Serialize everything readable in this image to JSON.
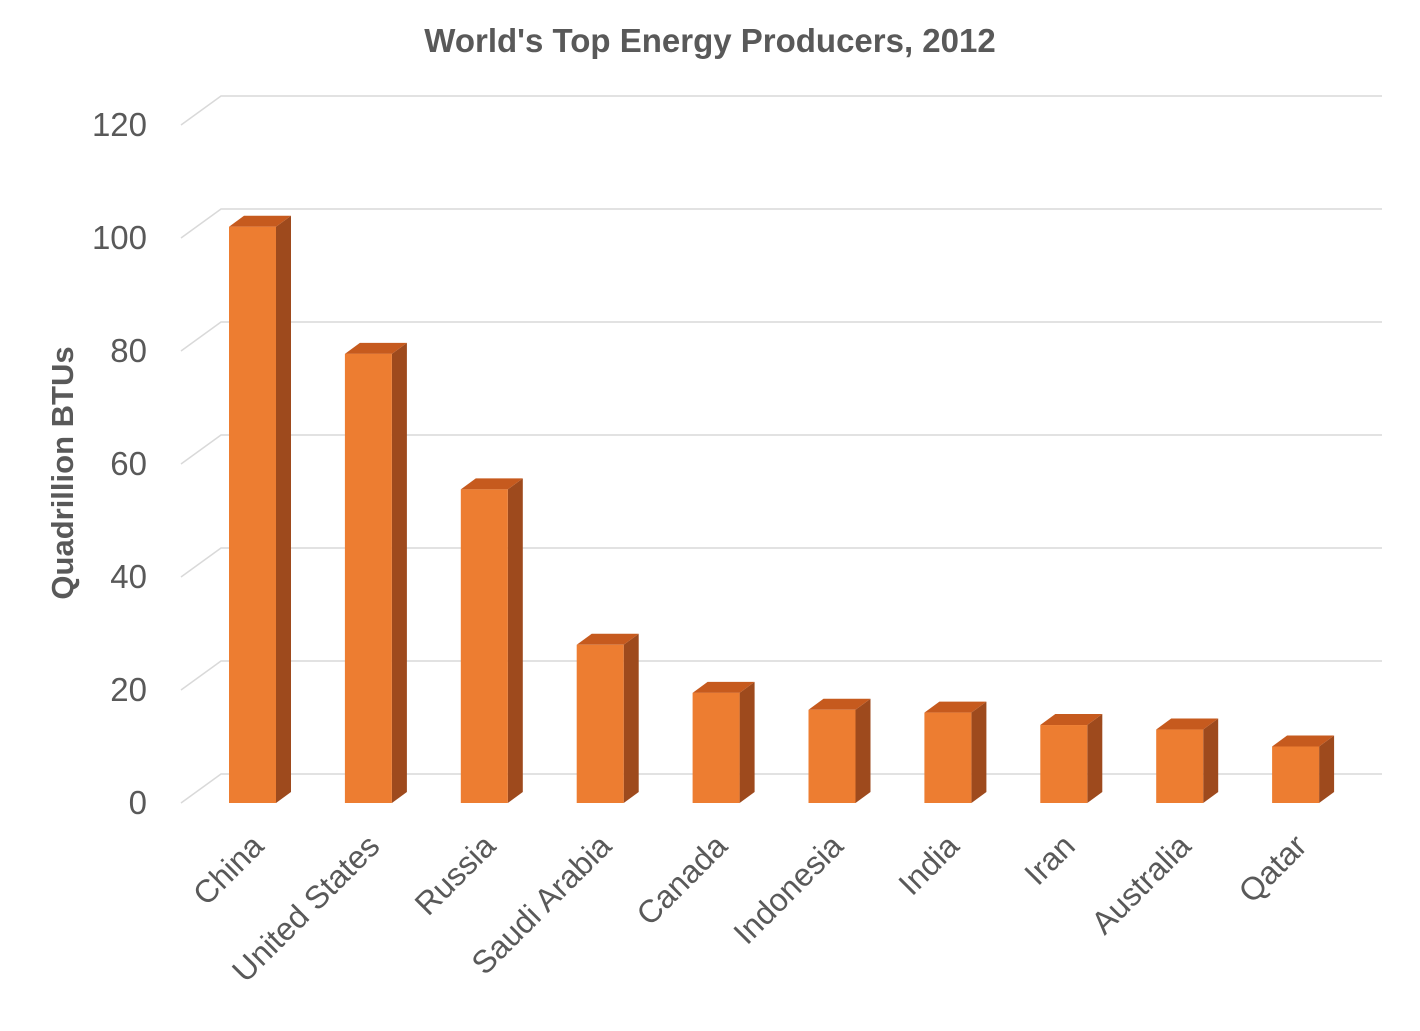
{
  "chart_data": {
    "type": "bar",
    "title": "World's Top Energy Producers, 2012",
    "xlabel": "",
    "ylabel": "Quadrillion BTUs",
    "categories": [
      "China",
      "United States",
      "Russia",
      "Saudi Arabia",
      "Canada",
      "Indonesia",
      "India",
      "Iran",
      "Australia",
      "Qatar"
    ],
    "values": [
      102,
      79.5,
      55.5,
      28,
      19.5,
      16.5,
      16,
      13.8,
      13,
      10
    ],
    "ylim": [
      0,
      120
    ],
    "yticks": [
      "0",
      "20",
      "40",
      "60",
      "80",
      "100",
      "120"
    ],
    "grid": true,
    "legend": "none",
    "style": "3d-column"
  },
  "colors": {
    "bar_front": "#ED7D31",
    "bar_top": "#C65A1E",
    "bar_side": "#9E4A1D",
    "gridline": "#D9D9D9",
    "text": "#595959"
  }
}
